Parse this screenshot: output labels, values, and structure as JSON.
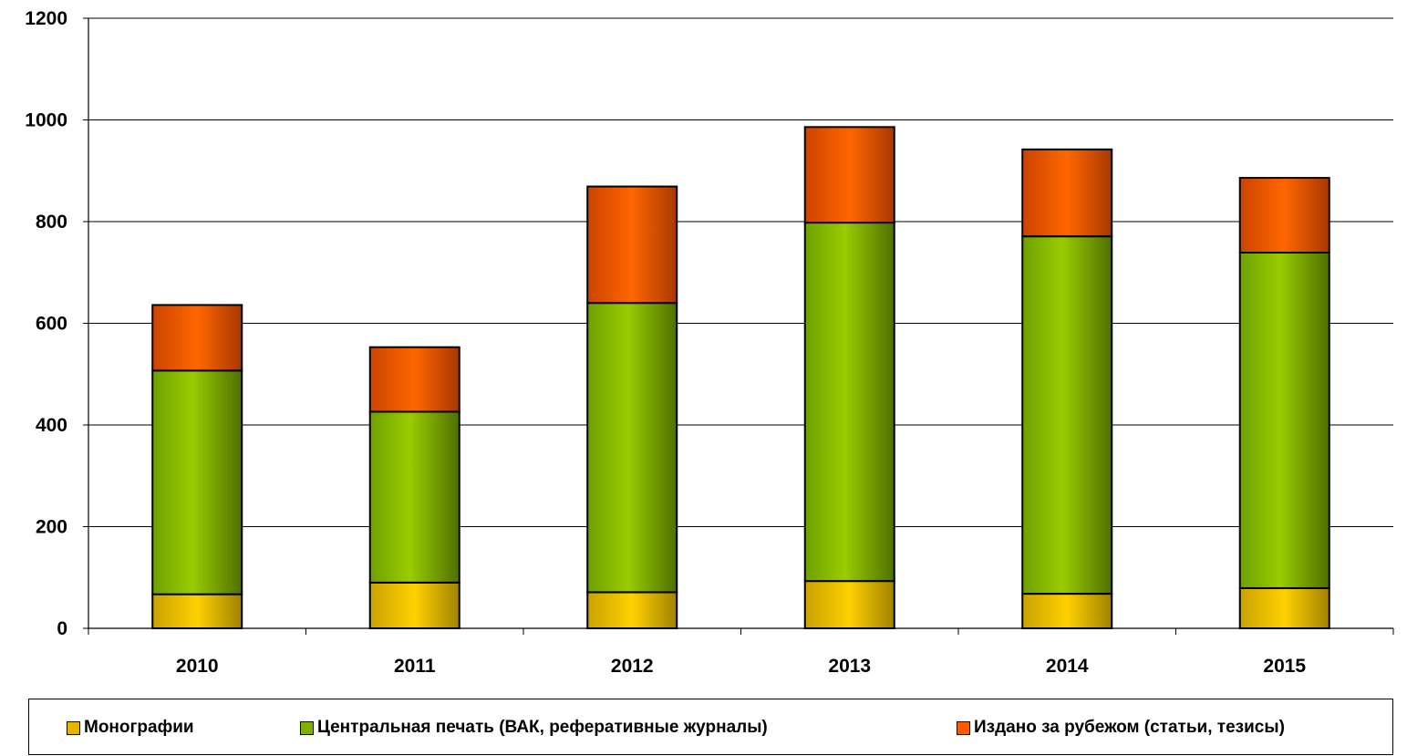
{
  "chart_data": {
    "type": "bar",
    "stacked": true,
    "categories": [
      "2010",
      "2011",
      "2012",
      "2013",
      "2014",
      "2015"
    ],
    "series": [
      {
        "name": "Монографии",
        "color": "#e8b400",
        "values": [
          67,
          90,
          71,
          93,
          68,
          79
        ]
      },
      {
        "name": "Центральная печать (ВАК, реферативные журналы)",
        "color": "#7fb000",
        "values": [
          440,
          336,
          569,
          705,
          703,
          660
        ]
      },
      {
        "name": "Издано за рубежом (статьи, тезисы)",
        "color": "#ff5a00",
        "values": [
          129,
          127,
          229,
          188,
          171,
          147
        ]
      }
    ],
    "yticks": [
      "0",
      "200",
      "400",
      "600",
      "800",
      "1000",
      "1200"
    ],
    "ylim": [
      0,
      1200
    ],
    "grid": true,
    "legend_position": "bottom"
  }
}
